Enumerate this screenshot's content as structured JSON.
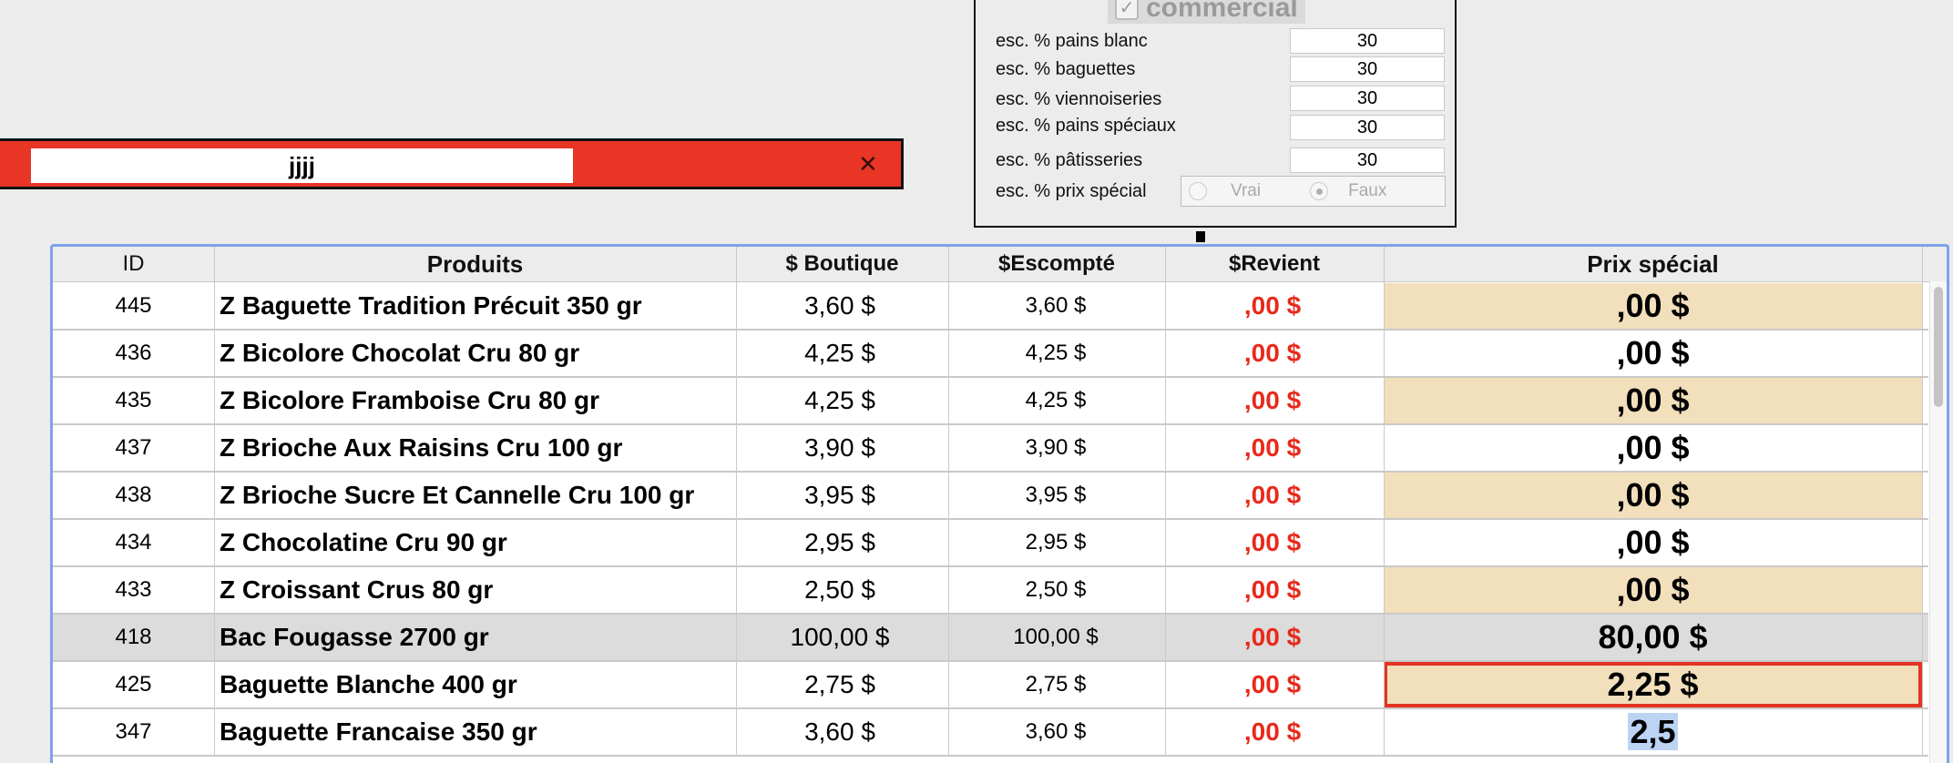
{
  "settings": {
    "commercial_label": "commercial",
    "commercial_checked": true,
    "rows": [
      {
        "label": "esc. % pains blanc",
        "value": "30"
      },
      {
        "label": "esc. % baguettes",
        "value": "30"
      },
      {
        "label": "esc. % viennoiseries",
        "value": "30"
      },
      {
        "label": "esc. % pains spéciaux",
        "value": "30"
      },
      {
        "label": "esc. % pâtisseries",
        "value": "30"
      }
    ],
    "prix_special": {
      "label": "esc. % prix spécial",
      "option_true": "Vrai",
      "option_false": "Faux",
      "selected": "Faux"
    }
  },
  "search": {
    "value": "jjjj",
    "close_icon": "close-icon"
  },
  "table": {
    "columns": [
      "ID",
      "Produits",
      "$ Boutique",
      "$Escompté",
      "$Revient",
      "Prix spécial"
    ],
    "rows": [
      {
        "id": "445",
        "produit": "Z Baguette Tradition Précuit 350 gr",
        "boutique": "3,60 $",
        "escompte": "3,60 $",
        "revient": ",00 $",
        "prix": ",00 $"
      },
      {
        "id": "436",
        "produit": "Z Bicolore Chocolat Cru 80 gr",
        "boutique": "4,25 $",
        "escompte": "4,25 $",
        "revient": ",00 $",
        "prix": ",00 $"
      },
      {
        "id": "435",
        "produit": "Z Bicolore Framboise Cru 80 gr",
        "boutique": "4,25 $",
        "escompte": "4,25 $",
        "revient": ",00 $",
        "prix": ",00 $"
      },
      {
        "id": "437",
        "produit": "Z Brioche Aux Raisins Cru 100 gr",
        "boutique": "3,90 $",
        "escompte": "3,90 $",
        "revient": ",00 $",
        "prix": ",00 $"
      },
      {
        "id": "438",
        "produit": "Z Brioche Sucre Et Cannelle Cru 100 gr",
        "boutique": "3,95 $",
        "escompte": "3,95 $",
        "revient": ",00 $",
        "prix": ",00 $"
      },
      {
        "id": "434",
        "produit": "Z Chocolatine Cru 90 gr",
        "boutique": "2,95 $",
        "escompte": "2,95 $",
        "revient": ",00 $",
        "prix": ",00 $"
      },
      {
        "id": "433",
        "produit": "Z Croissant Crus 80 gr",
        "boutique": "2,50 $",
        "escompte": "2,50 $",
        "revient": ",00 $",
        "prix": ",00 $"
      },
      {
        "id": "418",
        "produit": "Bac Fougasse  2700 gr",
        "boutique": "100,00 $",
        "escompte": "100,00 $",
        "revient": ",00 $",
        "prix": "80,00 $"
      },
      {
        "id": "425",
        "produit": "Baguette Blanche 400 gr",
        "boutique": "2,75 $",
        "escompte": "2,75 $",
        "revient": ",00 $",
        "prix": "2,25 $"
      },
      {
        "id": "347",
        "produit": "Baguette Francaise 350 gr",
        "boutique": "3,60 $",
        "escompte": "3,60 $",
        "revient": ",00 $",
        "prix": "2,5"
      }
    ],
    "selected_row": "418",
    "focused_row": "425",
    "editing_row": "347"
  }
}
